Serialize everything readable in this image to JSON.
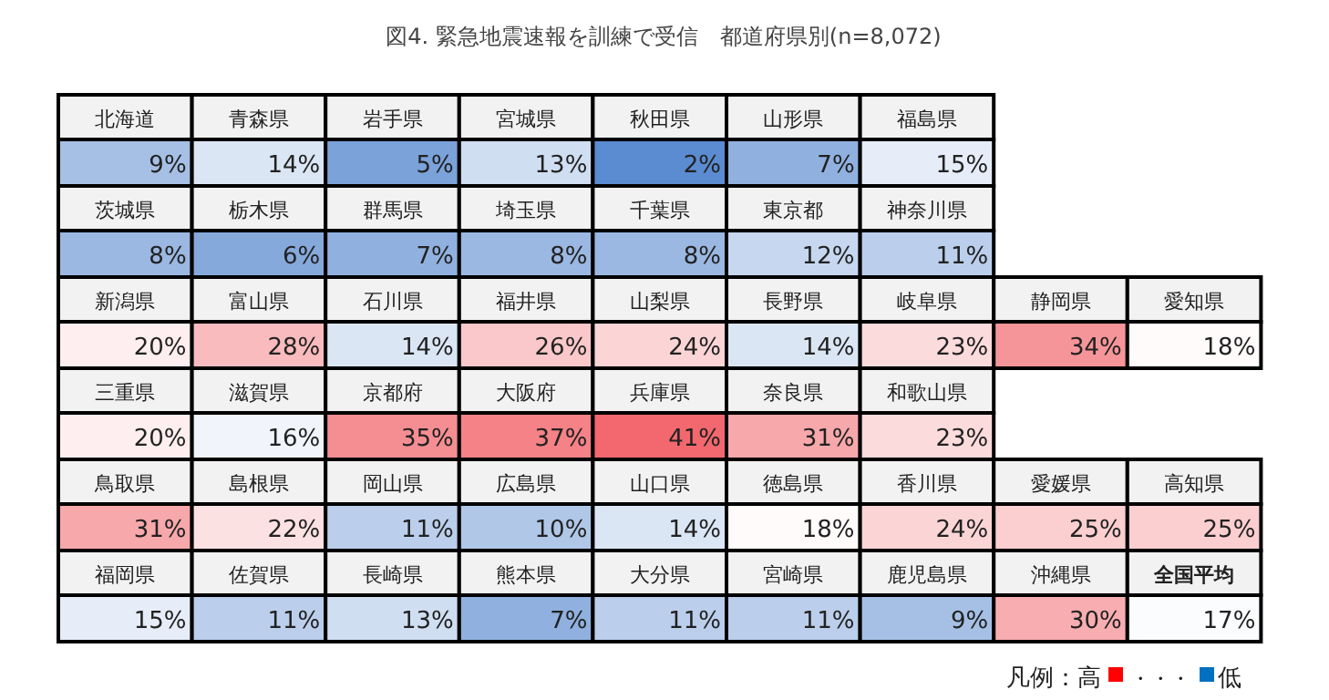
{
  "chart_data": {
    "type": "other",
    "title": "図4. 緊急地震速報を訓練で受信　都道府県別(n=8,072)",
    "categories": [
      "北海道",
      "青森県",
      "岩手県",
      "宮城県",
      "秋田県",
      "山形県",
      "福島県",
      "茨城県",
      "栃木県",
      "群馬県",
      "埼玉県",
      "千葉県",
      "東京都",
      "神奈川県",
      "新潟県",
      "富山県",
      "石川県",
      "福井県",
      "山梨県",
      "長野県",
      "岐阜県",
      "静岡県",
      "愛知県",
      "三重県",
      "滋賀県",
      "京都府",
      "大阪府",
      "兵庫県",
      "奈良県",
      "和歌山県",
      "鳥取県",
      "島根県",
      "岡山県",
      "広島県",
      "山口県",
      "徳島県",
      "香川県",
      "愛媛県",
      "高知県",
      "福岡県",
      "佐賀県",
      "長崎県",
      "熊本県",
      "大分県",
      "宮崎県",
      "鹿児島県",
      "沖縄県",
      "全国平均"
    ],
    "values": [
      9,
      14,
      5,
      13,
      2,
      7,
      15,
      8,
      6,
      7,
      8,
      8,
      12,
      11,
      20,
      28,
      14,
      26,
      24,
      14,
      23,
      34,
      18,
      20,
      16,
      35,
      37,
      41,
      31,
      23,
      31,
      22,
      11,
      10,
      14,
      18,
      24,
      25,
      25,
      15,
      11,
      13,
      7,
      11,
      11,
      9,
      30,
      17
    ],
    "value_labels": [
      "9%",
      "14%",
      "5%",
      "13%",
      "2%",
      "7%",
      "15%",
      "8%",
      "6%",
      "7%",
      "8%",
      "8%",
      "12%",
      "11%",
      "20%",
      "28%",
      "14%",
      "26%",
      "24%",
      "14%",
      "23%",
      "34%",
      "18%",
      "20%",
      "16%",
      "35%",
      "37%",
      "41%",
      "31%",
      "23%",
      "31%",
      "22%",
      "11%",
      "10%",
      "14%",
      "18%",
      "24%",
      "25%",
      "25%",
      "15%",
      "11%",
      "13%",
      "7%",
      "11%",
      "11%",
      "9%",
      "30%",
      "17%"
    ],
    "annotations": [
      "凡例：高",
      "・・・",
      "低"
    ]
  }
}
